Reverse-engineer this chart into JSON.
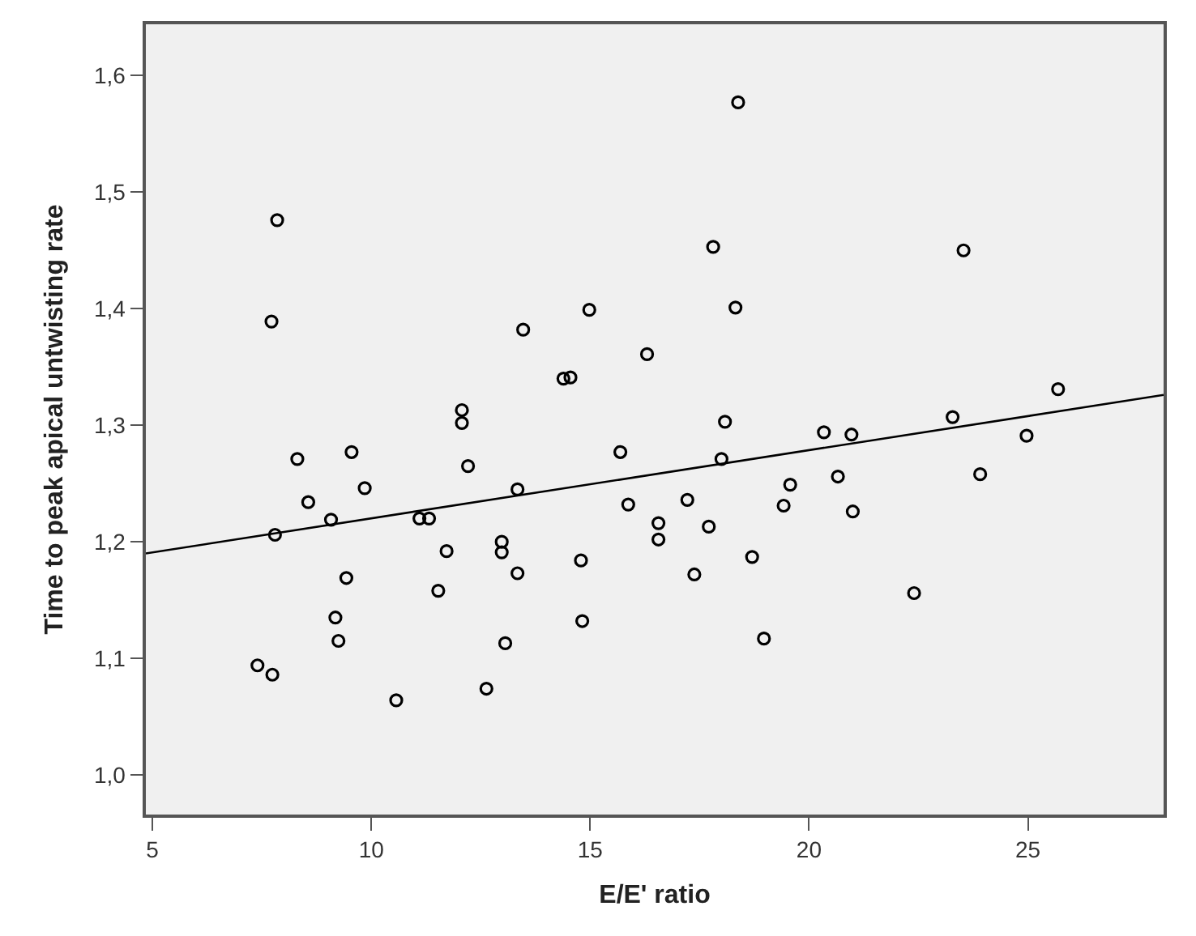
{
  "chart_data": {
    "type": "scatter",
    "xlabel": "E/E' ratio",
    "ylabel": "Time to peak apical untwisting rate",
    "grid": false,
    "legend": false,
    "xlim": [
      4.85,
      28.1
    ],
    "xticks": [
      5,
      10,
      15,
      20,
      25
    ],
    "ylim": [
      0.966,
      1.644
    ],
    "yticks": [
      {
        "value": 1.0,
        "label": "1,0"
      },
      {
        "value": 1.1,
        "label": "1,1"
      },
      {
        "value": 1.2,
        "label": "1,2"
      },
      {
        "value": 1.3,
        "label": "1,3"
      },
      {
        "value": 1.4,
        "label": "1,4"
      },
      {
        "value": 1.5,
        "label": "1,5"
      },
      {
        "value": 1.6,
        "label": "1,6"
      }
    ],
    "series": [
      {
        "marker": "circle",
        "color": "#000000",
        "x": [
          7.4,
          7.74,
          7.8,
          8.56,
          9.08,
          9.43,
          9.18,
          9.25,
          9.85,
          10.57,
          11.1,
          11.32,
          11.72,
          11.53,
          12.21,
          12.63,
          12.98,
          12.98,
          13.34,
          13.34,
          13.06,
          14.79,
          14.82,
          7.85,
          7.72,
          8.31,
          9.55,
          12.07,
          12.07,
          13.47,
          14.98,
          14.39,
          14.55,
          18.38,
          17.81,
          18.32,
          16.3,
          23.53,
          25.69,
          18.08,
          15.69,
          18.0,
          20.34,
          20.97,
          23.28,
          24.97,
          19.57,
          20.66,
          23.91,
          15.87,
          17.22,
          16.56,
          16.56,
          17.71,
          17.38,
          18.7,
          18.97,
          19.42,
          21.0,
          22.4
        ],
        "values": [
          1.094,
          1.086,
          1.206,
          1.234,
          1.219,
          1.169,
          1.135,
          1.115,
          1.246,
          1.064,
          1.22,
          1.22,
          1.192,
          1.158,
          1.265,
          1.074,
          1.2,
          1.191,
          1.173,
          1.245,
          1.113,
          1.184,
          1.132,
          1.476,
          1.389,
          1.271,
          1.277,
          1.313,
          1.302,
          1.382,
          1.399,
          1.34,
          1.341,
          1.577,
          1.453,
          1.401,
          1.361,
          1.45,
          1.331,
          1.303,
          1.277,
          1.271,
          1.294,
          1.292,
          1.307,
          1.291,
          1.249,
          1.256,
          1.258,
          1.232,
          1.236,
          1.216,
          1.202,
          1.213,
          1.172,
          1.187,
          1.117,
          1.231,
          1.226,
          1.156
        ]
      },
      {
        "type": "line",
        "marker": "none",
        "color": "#000000",
        "x": [
          4.85,
          28.1
        ],
        "values": [
          1.19,
          1.326
        ]
      }
    ]
  }
}
